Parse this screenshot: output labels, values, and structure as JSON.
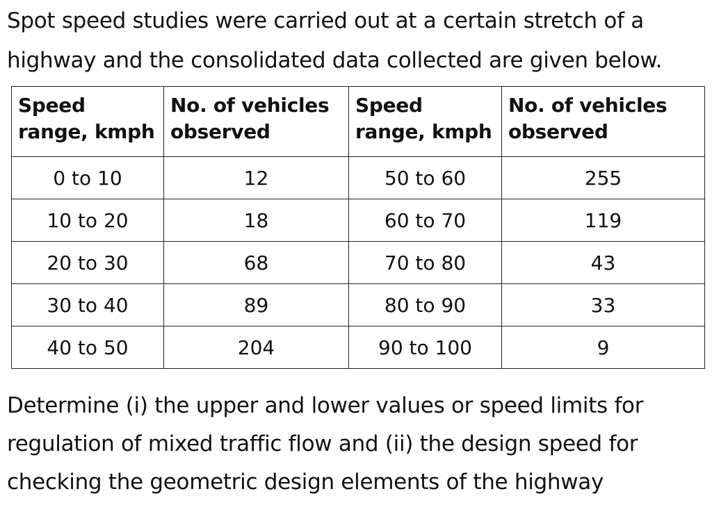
{
  "intro": {
    "text": "Spot speed studies were carried out at a certain stretch of a highway and the consolidated data collected are given below."
  },
  "table": {
    "headers": [
      "Speed range, kmph",
      "No. of vehicles observed",
      "Speed range, kmph",
      "No. of vehicles observed"
    ],
    "rows": [
      [
        "0 to 10",
        "12",
        "50 to 60",
        "255"
      ],
      [
        "10 to 20",
        "18",
        "60 to 70",
        "119"
      ],
      [
        "20 to 30",
        "68",
        "70 to 80",
        "43"
      ],
      [
        "30 to 40",
        "89",
        "80 to 90",
        "33"
      ],
      [
        "40 to 50",
        "204",
        "90 to 100",
        "9"
      ]
    ]
  },
  "question": {
    "text": "Determine (i) the upper and lower values or speed limits for regulation of mixed traffic flow and (ii) the design speed for checking the geometric design elements of the highway"
  }
}
